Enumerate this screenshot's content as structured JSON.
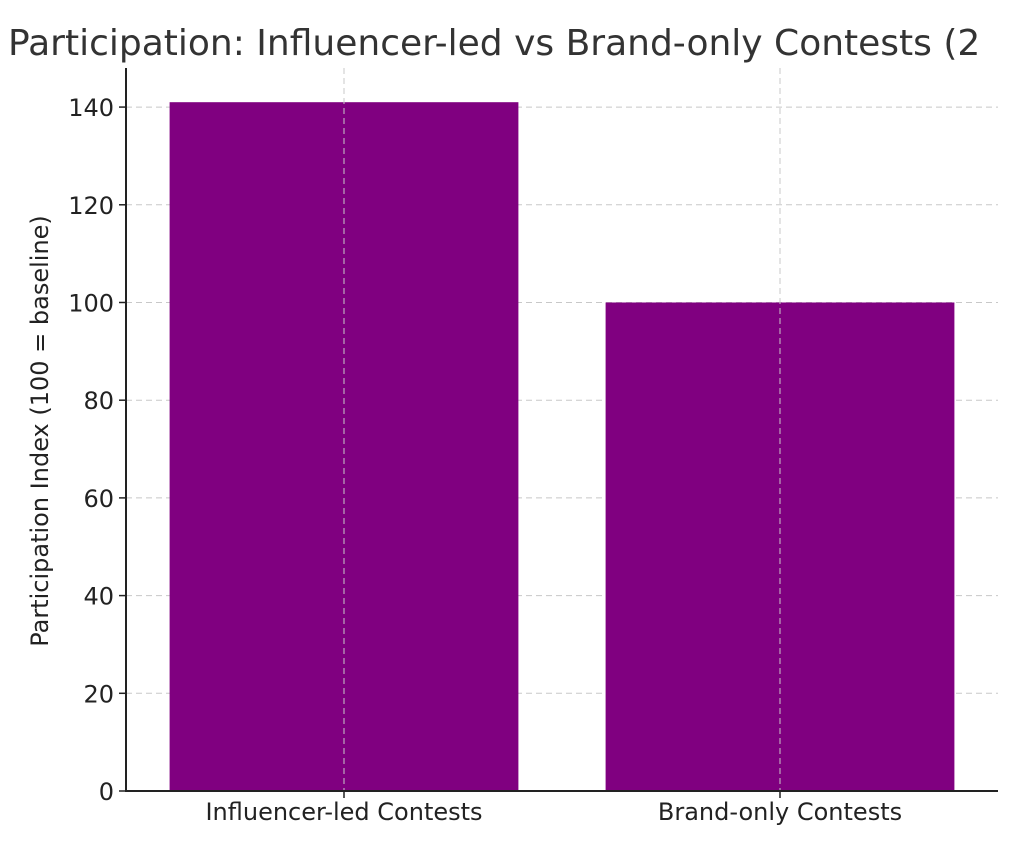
{
  "chart_data": {
    "type": "bar",
    "title": "Participation: Influencer-led vs Brand-only Contests (2",
    "xlabel": "",
    "ylabel": "Participation Index (100 = baseline)",
    "categories": [
      "Influencer-led Contests",
      "Brand-only Contests"
    ],
    "values": [
      141,
      100
    ],
    "ylim": [
      0,
      148
    ],
    "yticks": [
      0,
      20,
      40,
      60,
      80,
      100,
      120,
      140
    ],
    "grid": true,
    "bar_color": "#800080"
  }
}
